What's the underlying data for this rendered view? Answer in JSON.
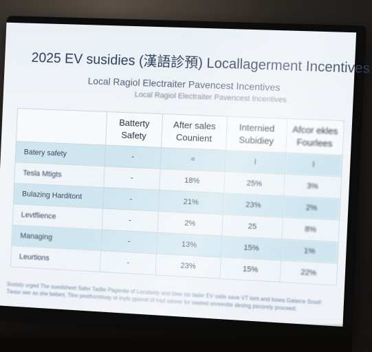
{
  "title": "2025 EV susidies (漢語診預) Locallagerment Incentives",
  "subtitle": "Local Ragiol Electraiter Pavencest Incentives",
  "caption": "Local Ragiol Electraiter Pavencest Incentives",
  "table": {
    "headers": [
      "",
      "Batterty Safety",
      "After sales Counient",
      "Internied Subidiey",
      "Afcor ekles Fourlees"
    ],
    "rows": [
      {
        "label": "Batery safety",
        "cells": [
          "-",
          "=",
          "l",
          "l"
        ]
      },
      {
        "label": "Tesla Mtigts",
        "cells": [
          "-",
          "18%",
          "25%",
          "3%"
        ]
      },
      {
        "label": "Bulazing Harditont",
        "cells": [
          "-",
          "21%",
          "23%",
          "2%"
        ]
      },
      {
        "label": "Levtflience",
        "cells": [
          "-",
          "2%",
          "25",
          "8%"
        ]
      },
      {
        "label": "Managing",
        "cells": [
          "-",
          "13%",
          "15%",
          "1%"
        ]
      },
      {
        "label": "Leurtions",
        "cells": [
          "-",
          "23%",
          "15%",
          "22%"
        ]
      }
    ]
  },
  "footnote": "Sostsly urged The sueslsheet Safer Tadlie Pagenite of Locstaidy and blee sls tader EV salle save VT tont and losea Gaterre Sroof: Tieasr wer as she bebert, Titre peathorstivay ot Inyts yporotl of trad sdorer tor saated onreestte desing pscorely proceed."
}
